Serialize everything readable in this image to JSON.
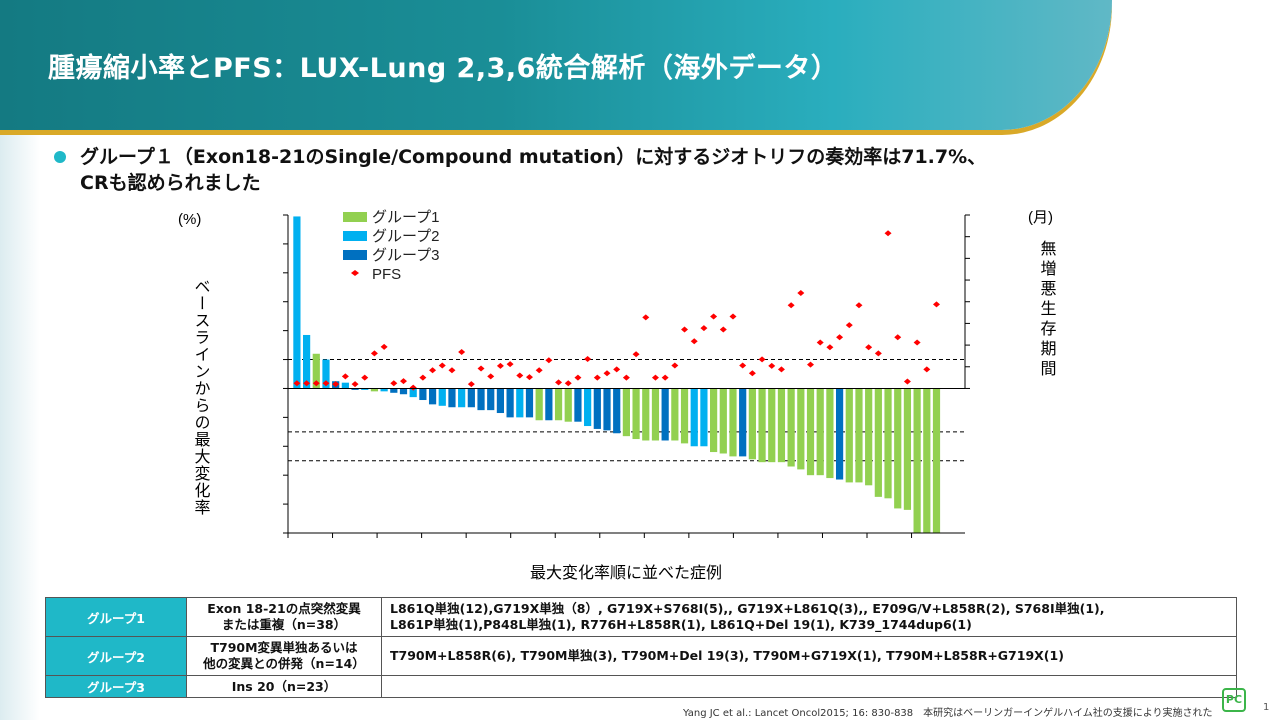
{
  "title": "腫瘍縮小率とPFS：LUX-Lung 2,3,6統合解析（海外データ）",
  "bullet": {
    "line1": "グループ１（Exon18-21のSingle/Compound mutation）に対するジオトリフの奏効率は71.7%、",
    "line2": "CRも認められました"
  },
  "chart_data": {
    "type": "bar",
    "xlabel": "最大変化率順に並べた症例",
    "ylabel": "ベースラインからの最大変化率",
    "ylabel_unit": "(%)",
    "y2label": "無増悪生存期間",
    "y2label_unit": "(月)",
    "xlim": [
      0,
      76
    ],
    "ylim": [
      -100,
      120
    ],
    "y2lim": [
      0,
      40
    ],
    "xticks": [
      0,
      5,
      10,
      15,
      20,
      25,
      30,
      35,
      40,
      45,
      50,
      55,
      60,
      65,
      70
    ],
    "yticks": [
      120,
      100,
      80,
      60,
      40,
      20,
      0,
      -20,
      -40,
      -60,
      -80,
      -100
    ],
    "y2ticks": [
      40,
      35,
      30,
      25,
      20,
      15,
      10,
      5,
      0
    ],
    "reference_lines": [
      20,
      -30,
      -50
    ],
    "legend": [
      {
        "label": "グループ1",
        "color": "#92d050"
      },
      {
        "label": "グループ2",
        "color": "#00b0f0"
      },
      {
        "label": "グループ3",
        "color": "#0070c0"
      },
      {
        "label": "PFS",
        "color": "#ff0000"
      }
    ],
    "legend_position": "top-left",
    "group": [
      2,
      2,
      1,
      2,
      3,
      2,
      3,
      2,
      1,
      2,
      3,
      3,
      2,
      3,
      3,
      2,
      3,
      2,
      3,
      3,
      3,
      3,
      3,
      2,
      3,
      1,
      3,
      1,
      1,
      3,
      2,
      3,
      3,
      3,
      1,
      1,
      1,
      1,
      3,
      1,
      1,
      2,
      2,
      1,
      1,
      1,
      3,
      1,
      1,
      1,
      1,
      1,
      1,
      1,
      1,
      1,
      3,
      1,
      1,
      1,
      1,
      1,
      1,
      1,
      1,
      1,
      1
    ],
    "change_pct": [
      119,
      37,
      24,
      20,
      5,
      4,
      -1,
      -1,
      -2,
      -2,
      -3,
      -4,
      -6,
      -8,
      -11,
      -12,
      -13,
      -13,
      -13,
      -15,
      -15,
      -17,
      -20,
      -20,
      -20,
      -22,
      -22,
      -22,
      -23,
      -23,
      -26,
      -28,
      -29,
      -31,
      -33,
      -35,
      -36,
      -36,
      -36,
      -36,
      -38,
      -40,
      -40,
      -44,
      -45,
      -47,
      -47,
      -49,
      -51,
      -51,
      -51,
      -54,
      -56,
      -60,
      -60,
      -62,
      -63,
      -65,
      -65,
      -67,
      -75,
      -76,
      -83,
      -84,
      -100,
      -100,
      -100
    ],
    "pfs_months": [
      1.2,
      1.2,
      1.2,
      1.2,
      1.0,
      2.8,
      1.0,
      2.5,
      8.1,
      9.6,
      1.2,
      1.7,
      0.2,
      2.5,
      4.2,
      5.3,
      4.2,
      8.4,
      1.0,
      4.6,
      2.8,
      5.2,
      5.6,
      3.0,
      2.6,
      4.2,
      6.5,
      1.4,
      1.2,
      2.5,
      6.8,
      2.5,
      3.5,
      4.4,
      2.5,
      7.9,
      16.4,
      2.5,
      2.5,
      5.3,
      13.6,
      10.9,
      13.9,
      16.6,
      13.6,
      16.6,
      5.3,
      3.5,
      6.7,
      5.2,
      4.4,
      19.2,
      22.0,
      5.5,
      10.6,
      9.5,
      11.8,
      14.6,
      19.2,
      9.5,
      8.1,
      35.8,
      11.8,
      1.6,
      10.6,
      4.4,
      19.4
    ]
  },
  "table": {
    "rows": [
      {
        "group": "グループ1",
        "desc1": "Exon 18-21の点突然変異",
        "desc2": "または重複（n=38）",
        "mut1": "L861Q単独(12),G719X単独（8）, G719X+S768I(5),, G719X+L861Q(3),, E709G/V+L858R(2), S768I単独(1),",
        "mut2": "L861P単独(1),P848L単独(1), R776H+L858R(1), L861Q+Del 19(1), K739_1744dup6(1)"
      },
      {
        "group": "グループ2",
        "desc1": "T790M変異単独あるいは",
        "desc2": "他の変異との併発（n=14）",
        "mut1": "T790M+L858R(6), T790M単独(3), T790M+Del 19(3), T790M+G719X(1), T790M+L858R+G719X(1)",
        "mut2": ""
      },
      {
        "group": "グループ3",
        "desc1": "Ins 20（n=23）",
        "desc2": "",
        "mut1": "",
        "mut2": ""
      }
    ]
  },
  "footer": "Yang JC et al.: Lancet Oncol2015; 16: 830-838　本研究はベーリンガーインゲルハイム社の支援により実施された",
  "logo": "PC",
  "page_number": "1"
}
